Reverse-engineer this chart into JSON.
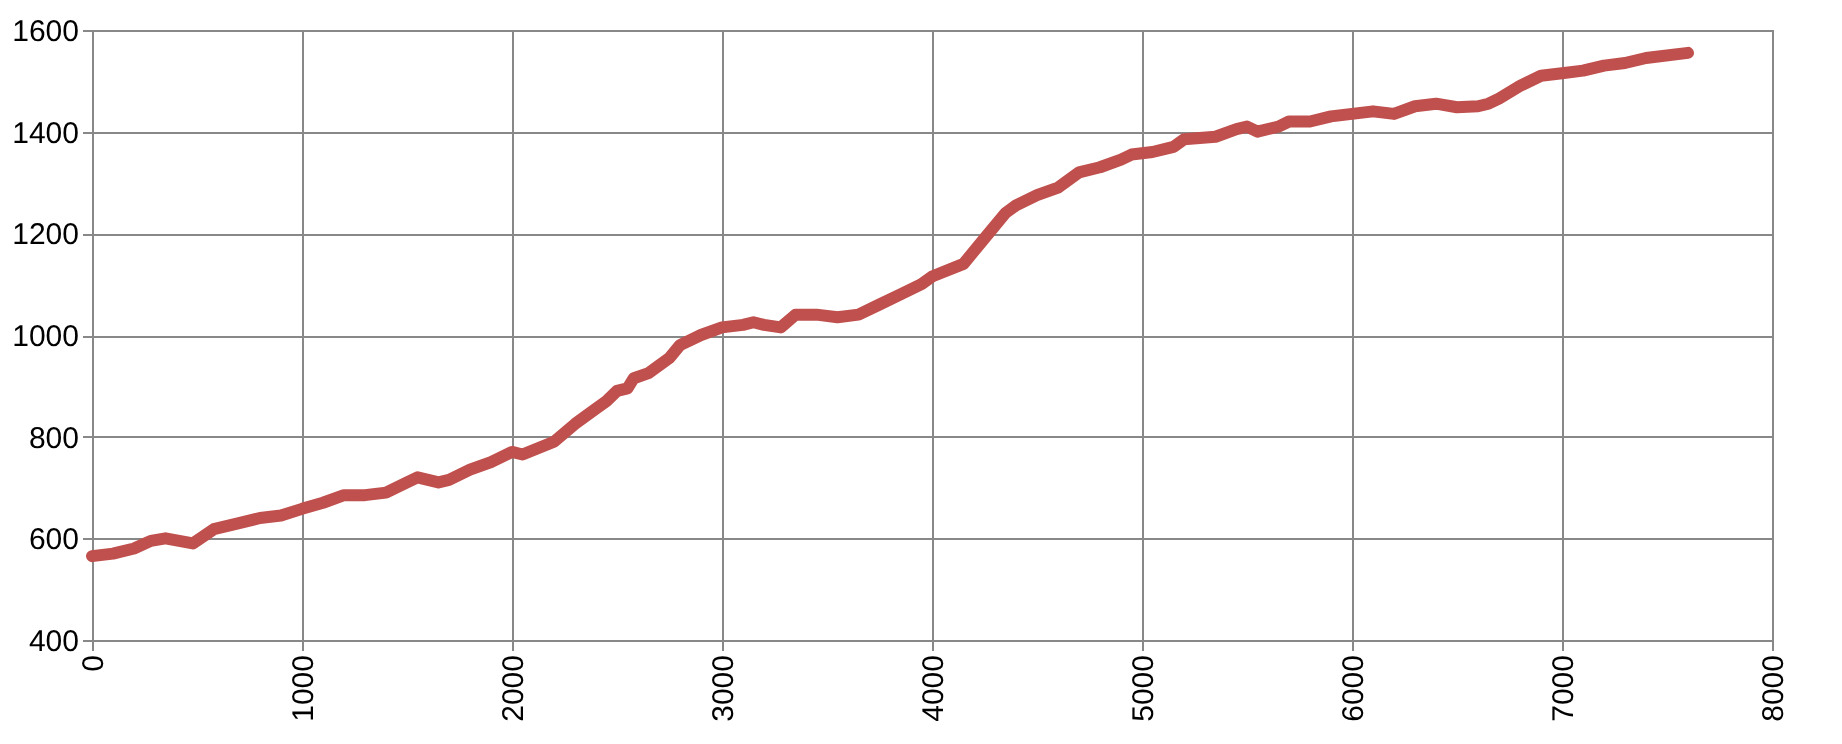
{
  "chart_data": {
    "type": "line",
    "xlim": [
      0,
      8000
    ],
    "xticks": [
      0,
      1000,
      2000,
      3000,
      4000,
      5000,
      6000,
      7000,
      8000
    ],
    "ylim": [
      400,
      1600
    ],
    "yticks": [
      400,
      600,
      800,
      1000,
      1200,
      1400,
      1600
    ],
    "grid": true,
    "marker": "none",
    "line_style": "solid",
    "series": [
      {
        "color": "#c0504d",
        "x": [
          0,
          100,
          200,
          280,
          350,
          480,
          580,
          700,
          800,
          900,
          1000,
          1100,
          1200,
          1300,
          1400,
          1500,
          1550,
          1650,
          1700,
          1800,
          1900,
          2000,
          2050,
          2200,
          2300,
          2400,
          2450,
          2500,
          2550,
          2580,
          2650,
          2750,
          2800,
          2900,
          3000,
          3100,
          3150,
          3200,
          3280,
          3350,
          3450,
          3550,
          3650,
          3750,
          3850,
          3950,
          4000,
          4150,
          4250,
          4350,
          4400,
          4500,
          4600,
          4700,
          4800,
          4900,
          4950,
          5050,
          5150,
          5200,
          5350,
          5450,
          5500,
          5550,
          5650,
          5700,
          5800,
          5900,
          6000,
          6100,
          6200,
          6300,
          6400,
          6500,
          6600,
          6650,
          6700,
          6800,
          6900,
          7000,
          7100,
          7200,
          7300,
          7400,
          7600
        ],
        "values": [
          565,
          570,
          580,
          595,
          600,
          590,
          618,
          630,
          640,
          645,
          658,
          670,
          685,
          685,
          690,
          710,
          720,
          710,
          715,
          735,
          750,
          770,
          765,
          790,
          825,
          855,
          870,
          890,
          895,
          915,
          925,
          955,
          980,
          1000,
          1015,
          1020,
          1025,
          1020,
          1015,
          1040,
          1040,
          1035,
          1040,
          1060,
          1080,
          1100,
          1115,
          1140,
          1190,
          1240,
          1255,
          1275,
          1290,
          1320,
          1330,
          1345,
          1355,
          1360,
          1370,
          1385,
          1390,
          1405,
          1410,
          1400,
          1410,
          1420,
          1420,
          1430,
          1435,
          1440,
          1435,
          1450,
          1455,
          1448,
          1450,
          1455,
          1465,
          1490,
          1510,
          1515,
          1520,
          1530,
          1535,
          1545,
          1555
        ]
      }
    ]
  }
}
